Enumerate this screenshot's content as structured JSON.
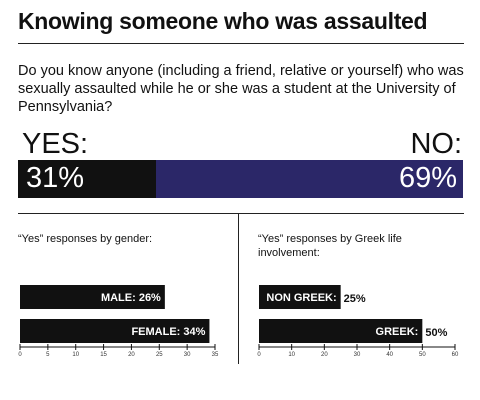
{
  "title": "Knowing someone who was assaulted",
  "question": "Do you know anyone (including a friend, relative or yourself) who was sexually assaulted while he or she was a student at the University of Pennsylvania?",
  "colors": {
    "yes": "#111111",
    "no": "#2b2768",
    "bar": "#111111"
  },
  "chart_data": [
    {
      "type": "bar",
      "orientation": "horizontal-stacked",
      "categories": [
        "YES:",
        "NO:"
      ],
      "values": [
        31,
        69
      ],
      "labels": [
        "31%",
        "69%"
      ],
      "ylim": [
        0,
        100
      ]
    },
    {
      "type": "bar",
      "orientation": "horizontal",
      "title": "“Yes” responses by gender:",
      "categories": [
        "MALE",
        "FEMALE"
      ],
      "values": [
        26,
        34
      ],
      "labels": [
        "MALE: 26%",
        "FEMALE: 34%"
      ],
      "xlim": [
        0,
        35
      ],
      "ticks": [
        "0",
        "5",
        "10",
        "15",
        "20",
        "25",
        "30",
        "35"
      ]
    },
    {
      "type": "bar",
      "orientation": "horizontal",
      "title": "“Yes” responses by Greek life involvement:",
      "categories": [
        "NON GREEK",
        "GREEK"
      ],
      "values": [
        25,
        50
      ],
      "labels": [
        "NON GREEK:",
        "GREEK:"
      ],
      "value_labels": [
        "25%",
        "50%"
      ],
      "xlim": [
        0,
        60
      ],
      "ticks": [
        "0",
        "10",
        "20",
        "30",
        "40",
        "50",
        "60"
      ]
    }
  ]
}
